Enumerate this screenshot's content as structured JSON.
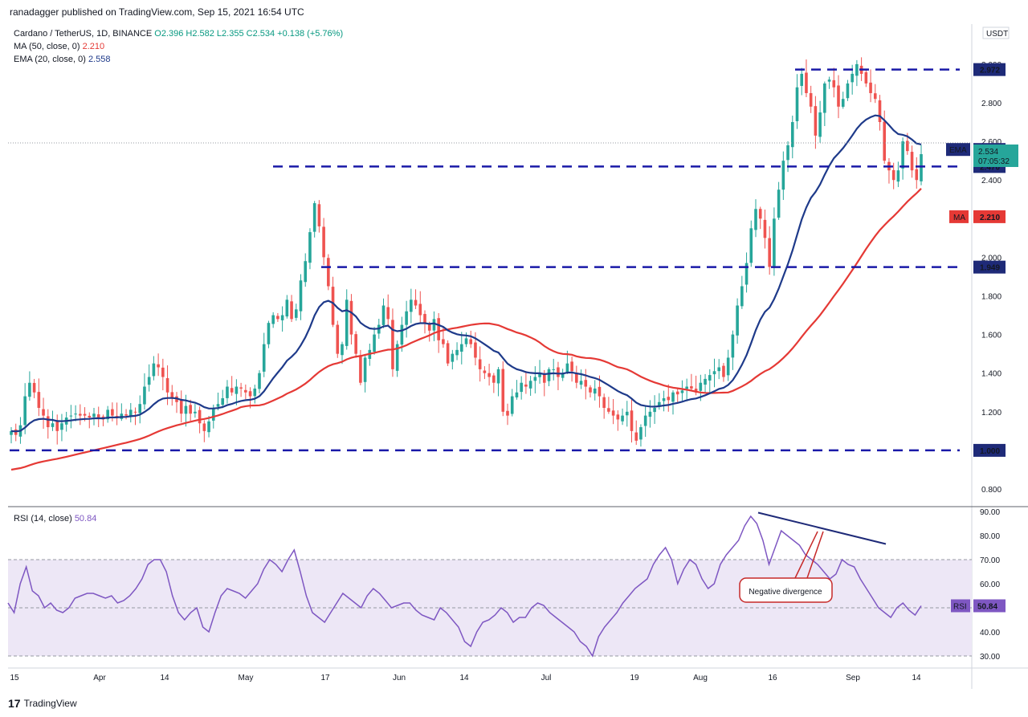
{
  "header": {
    "published_by": "ranadagger published on TradingView.com, Sep 15, 2021 16:54 UTC"
  },
  "legend": {
    "symbol": "Cardano / TetherUS, 1D, BINANCE",
    "ohlc": "O2.396 H2.582 L2.355 C2.534 +0.138 (+5.76%)",
    "ma_label": "MA (50, close, 0)",
    "ma_value": "2.210",
    "ema_label": "EMA (20, close, 0)",
    "ema_value": "2.558"
  },
  "rsi_legend": {
    "label": "RSI (14, close)",
    "value": "50.84"
  },
  "footer": {
    "logo_text": "TradingView"
  },
  "colors": {
    "up": "#26a69a",
    "down": "#ef5350",
    "ema": "#1e3a8a",
    "ma": "#e53935",
    "levels": "#1a1aa8",
    "rsi": "#7e57c2",
    "rsi_band": "#ede7f6"
  },
  "chart_data": [
    {
      "type": "candlestick",
      "title": "Cardano / TetherUS, 1D, BINANCE",
      "y_axis_unit": "USDT",
      "ylim": [
        0.72,
        3.2
      ],
      "y_ticks": [
        "0.800",
        "1.000",
        "1.200",
        "1.400",
        "1.600",
        "1.800",
        "2.000",
        "2.200",
        "2.400",
        "2.600",
        "2.800",
        "3.000"
      ],
      "x_ticks": [
        "15",
        "Apr",
        "14",
        "May",
        "17",
        "Jun",
        "14",
        "Jul",
        "19",
        "Aug",
        "16",
        "Sep",
        "14"
      ],
      "horizontal_levels": [
        {
          "value": 2.972,
          "label": "2.972"
        },
        {
          "value": 2.47,
          "label": "2.470"
        },
        {
          "value": 1.949,
          "label": "1.949"
        },
        {
          "value": 1.0,
          "label": "1.000"
        }
      ],
      "price_labels": [
        {
          "name": "EMA",
          "value": "2.558"
        },
        {
          "name": "Last",
          "value": "2.534",
          "countdown": "07:05:32"
        },
        {
          "name": "MA",
          "value": "2.210"
        }
      ],
      "close_series": [
        1.1,
        1.08,
        1.13,
        1.28,
        1.35,
        1.3,
        1.22,
        1.18,
        1.12,
        1.14,
        1.1,
        1.14,
        1.17,
        1.18,
        1.19,
        1.18,
        1.18,
        1.17,
        1.19,
        1.17,
        1.16,
        1.21,
        1.18,
        1.17,
        1.19,
        1.18,
        1.21,
        1.2,
        1.24,
        1.33,
        1.38,
        1.45,
        1.43,
        1.38,
        1.3,
        1.27,
        1.25,
        1.19,
        1.23,
        1.19,
        1.2,
        1.14,
        1.1,
        1.15,
        1.22,
        1.24,
        1.27,
        1.33,
        1.3,
        1.33,
        1.32,
        1.3,
        1.28,
        1.32,
        1.4,
        1.55,
        1.66,
        1.7,
        1.68,
        1.7,
        1.78,
        1.68,
        1.73,
        1.88,
        1.98,
        2.13,
        2.28,
        2.16,
        2.0,
        1.85,
        1.65,
        1.5,
        1.55,
        1.78,
        1.6,
        1.5,
        1.35,
        1.48,
        1.52,
        1.6,
        1.65,
        1.75,
        1.68,
        1.42,
        1.55,
        1.65,
        1.72,
        1.78,
        1.75,
        1.7,
        1.66,
        1.62,
        1.68,
        1.57,
        1.55,
        1.45,
        1.5,
        1.52,
        1.55,
        1.58,
        1.55,
        1.48,
        1.42,
        1.4,
        1.38,
        1.35,
        1.42,
        1.2,
        1.18,
        1.28,
        1.3,
        1.35,
        1.33,
        1.36,
        1.38,
        1.4,
        1.35,
        1.42,
        1.42,
        1.38,
        1.4,
        1.45,
        1.41,
        1.35,
        1.36,
        1.33,
        1.3,
        1.32,
        1.28,
        1.22,
        1.2,
        1.18,
        1.16,
        1.18,
        1.2,
        1.1,
        1.05,
        1.12,
        1.18,
        1.2,
        1.22,
        1.25,
        1.27,
        1.26,
        1.3,
        1.29,
        1.31,
        1.33,
        1.32,
        1.3,
        1.35,
        1.37,
        1.39,
        1.41,
        1.43,
        1.38,
        1.48,
        1.6,
        1.75,
        1.85,
        1.97,
        2.15,
        2.25,
        2.2,
        2.1,
        1.95,
        2.2,
        2.35,
        2.5,
        2.58,
        2.7,
        2.88,
        2.95,
        2.85,
        2.78,
        2.63,
        2.75,
        2.9,
        2.92,
        2.88,
        2.78,
        2.82,
        2.9,
        2.95,
        3.0,
        2.95,
        2.9,
        2.85,
        2.82,
        2.7,
        2.5,
        2.45,
        2.4,
        2.45,
        2.6,
        2.55,
        2.45,
        2.4,
        2.534
      ],
      "ema20_series_anchor": {
        "last": 2.558
      },
      "ma50_series_anchor": {
        "last": 2.21
      }
    },
    {
      "type": "line",
      "title": "RSI (14, close)",
      "ylim": [
        27,
        92
      ],
      "y_ticks": [
        "30.00",
        "40.00",
        "50.00",
        "60.00",
        "70.00",
        "80.00",
        "90.00"
      ],
      "band": [
        30,
        70
      ],
      "last_value": "50.84",
      "values": [
        52,
        48,
        60,
        67,
        57,
        55,
        50,
        52,
        49,
        48,
        50,
        54,
        55,
        56,
        56,
        55,
        54,
        55,
        52,
        53,
        55,
        58,
        62,
        68,
        70,
        70,
        65,
        55,
        48,
        45,
        48,
        50,
        42,
        40,
        48,
        55,
        58,
        57,
        56,
        54,
        57,
        60,
        66,
        70,
        68,
        65,
        70,
        74,
        65,
        55,
        48,
        46,
        44,
        48,
        52,
        56,
        54,
        52,
        50,
        55,
        58,
        56,
        53,
        50,
        51,
        52,
        52,
        49,
        47,
        46,
        45,
        50,
        48,
        45,
        42,
        36,
        34,
        40,
        44,
        45,
        47,
        50,
        48,
        44,
        46,
        46,
        50,
        52,
        51,
        48,
        46,
        44,
        42,
        40,
        36,
        34,
        30,
        38,
        42,
        45,
        48,
        52,
        55,
        58,
        60,
        62,
        68,
        72,
        75,
        70,
        60,
        66,
        70,
        68,
        62,
        58,
        60,
        68,
        72,
        75,
        78,
        84,
        88,
        85,
        78,
        68,
        75,
        82,
        80,
        78,
        76,
        72,
        70,
        68,
        65,
        62,
        64,
        70,
        68,
        67,
        62,
        58,
        54,
        50,
        48,
        46,
        50,
        52,
        49,
        47,
        50.84
      ],
      "annotation": {
        "text": "Negative divergence",
        "trendline_from": 89.5,
        "trendline_to": 76.5
      }
    }
  ]
}
